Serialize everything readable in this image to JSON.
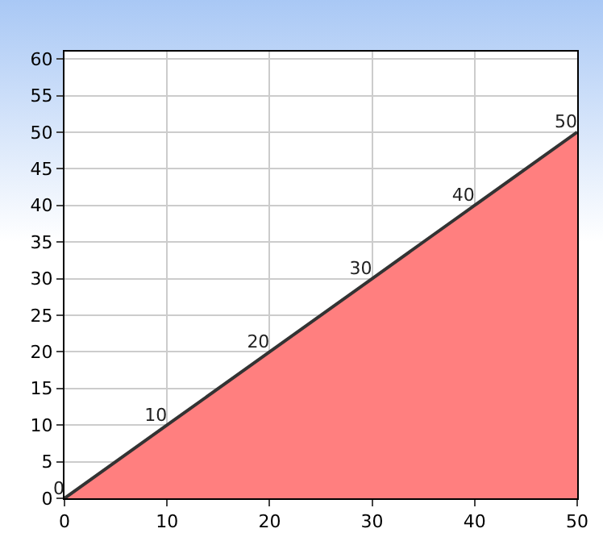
{
  "chart_data": {
    "type": "area",
    "x": [
      0,
      10,
      20,
      30,
      40,
      50
    ],
    "series": [
      {
        "color": "#ff7f7f",
        "values": [
          0,
          10,
          20,
          30,
          40,
          50
        ]
      }
    ],
    "data_labels": true,
    "xlim": [
      0,
      50
    ],
    "ylim": [
      0,
      61
    ],
    "xticks": [
      0,
      10,
      20,
      30,
      40,
      50
    ],
    "yticks": [
      0,
      5,
      10,
      15,
      20,
      25,
      30,
      35,
      40,
      45,
      50,
      55,
      60
    ],
    "grid": true,
    "legend": false
  }
}
